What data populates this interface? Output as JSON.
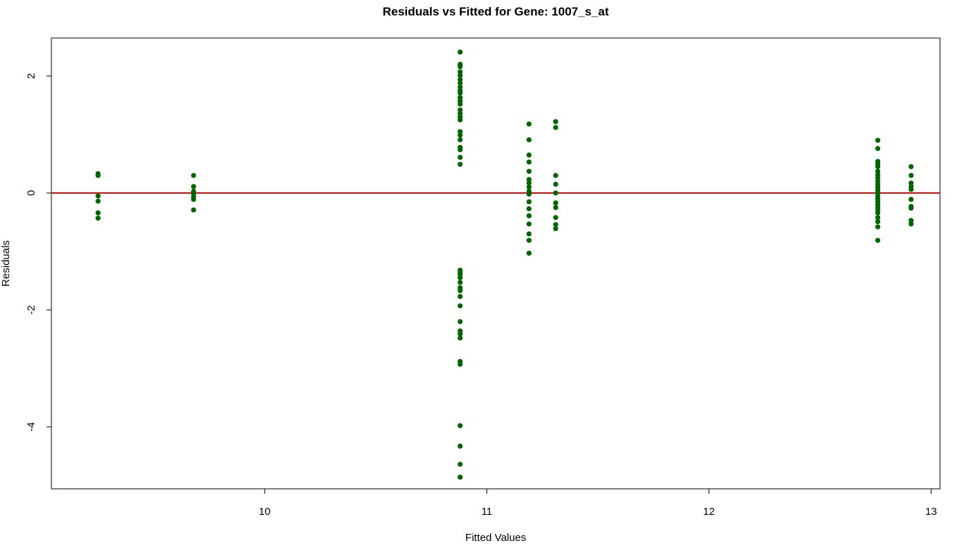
{
  "chart_data": {
    "type": "scatter",
    "title": "Residuals vs Fitted for Gene: 1007_s_at",
    "xlabel": "Fitted Values",
    "ylabel": "Residuals",
    "xlim": [
      9.04,
      13.04
    ],
    "ylim": [
      -5.06,
      2.65
    ],
    "x_ticks": [
      10,
      11,
      12,
      13
    ],
    "y_ticks": [
      -4,
      -2,
      0,
      2
    ],
    "grid": false,
    "point_color": "#006400",
    "reference_line": {
      "y": 0,
      "color": "#ff0000"
    },
    "series": [
      {
        "points": [
          [
            9.25,
            0.33
          ],
          [
            9.25,
            0.3
          ],
          [
            9.25,
            -0.05
          ],
          [
            9.25,
            -0.14
          ],
          [
            9.25,
            -0.34
          ],
          [
            9.25,
            -0.43
          ],
          [
            9.68,
            0.3
          ],
          [
            9.68,
            0.11
          ],
          [
            9.68,
            0.03
          ],
          [
            9.68,
            -0.02
          ],
          [
            9.68,
            -0.07
          ],
          [
            9.68,
            -0.11
          ],
          [
            9.68,
            -0.29
          ],
          [
            10.88,
            2.41
          ],
          [
            10.88,
            2.2
          ],
          [
            10.88,
            2.16
          ],
          [
            10.88,
            2.07
          ],
          [
            10.88,
            2.01
          ],
          [
            10.88,
            1.94
          ],
          [
            10.88,
            1.88
          ],
          [
            10.88,
            1.81
          ],
          [
            10.88,
            1.75
          ],
          [
            10.88,
            1.71
          ],
          [
            10.88,
            1.63
          ],
          [
            10.88,
            1.57
          ],
          [
            10.88,
            1.52
          ],
          [
            10.88,
            1.42
          ],
          [
            10.88,
            1.36
          ],
          [
            10.88,
            1.3
          ],
          [
            10.88,
            1.25
          ],
          [
            10.88,
            1.05
          ],
          [
            10.88,
            0.99
          ],
          [
            10.88,
            0.91
          ],
          [
            10.88,
            0.78
          ],
          [
            10.88,
            0.74
          ],
          [
            10.88,
            0.61
          ],
          [
            10.88,
            0.49
          ],
          [
            10.88,
            -1.32
          ],
          [
            10.88,
            -1.36
          ],
          [
            10.88,
            -1.4
          ],
          [
            10.88,
            -1.45
          ],
          [
            10.88,
            -1.53
          ],
          [
            10.88,
            -1.62
          ],
          [
            10.88,
            -1.67
          ],
          [
            10.88,
            -1.77
          ],
          [
            10.88,
            -1.93
          ],
          [
            10.88,
            -2.2
          ],
          [
            10.88,
            -2.36
          ],
          [
            10.88,
            -2.41
          ],
          [
            10.88,
            -2.48
          ],
          [
            10.88,
            -2.88
          ],
          [
            10.88,
            -2.93
          ],
          [
            10.88,
            -3.98
          ],
          [
            10.88,
            -4.33
          ],
          [
            10.88,
            -4.64
          ],
          [
            10.88,
            -4.86
          ],
          [
            11.19,
            1.18
          ],
          [
            11.19,
            0.91
          ],
          [
            11.19,
            0.65
          ],
          [
            11.19,
            0.53
          ],
          [
            11.19,
            0.37
          ],
          [
            11.19,
            0.23
          ],
          [
            11.19,
            0.17
          ],
          [
            11.19,
            0.1
          ],
          [
            11.19,
            0.03
          ],
          [
            11.19,
            -0.02
          ],
          [
            11.19,
            -0.15
          ],
          [
            11.19,
            -0.27
          ],
          [
            11.19,
            -0.39
          ],
          [
            11.19,
            -0.53
          ],
          [
            11.19,
            -0.7
          ],
          [
            11.19,
            -0.81
          ],
          [
            11.19,
            -1.03
          ],
          [
            11.31,
            1.22
          ],
          [
            11.31,
            1.12
          ],
          [
            11.31,
            0.3
          ],
          [
            11.31,
            0.15
          ],
          [
            11.31,
            0.0
          ],
          [
            11.31,
            -0.17
          ],
          [
            11.31,
            -0.25
          ],
          [
            11.31,
            -0.42
          ],
          [
            11.31,
            -0.54
          ],
          [
            11.31,
            -0.61
          ],
          [
            12.76,
            0.9
          ],
          [
            12.76,
            0.76
          ],
          [
            12.76,
            0.54
          ],
          [
            12.76,
            0.5
          ],
          [
            12.76,
            0.45
          ],
          [
            12.76,
            0.37
          ],
          [
            12.76,
            0.31
          ],
          [
            12.76,
            0.26
          ],
          [
            12.76,
            0.2
          ],
          [
            12.76,
            0.15
          ],
          [
            12.76,
            0.1
          ],
          [
            12.76,
            0.05
          ],
          [
            12.76,
            0.0
          ],
          [
            12.76,
            -0.05
          ],
          [
            12.76,
            -0.1
          ],
          [
            12.76,
            -0.15
          ],
          [
            12.76,
            -0.2
          ],
          [
            12.76,
            -0.25
          ],
          [
            12.76,
            -0.29
          ],
          [
            12.76,
            -0.34
          ],
          [
            12.76,
            -0.42
          ],
          [
            12.76,
            -0.49
          ],
          [
            12.76,
            -0.58
          ],
          [
            12.76,
            -0.81
          ],
          [
            12.91,
            0.45
          ],
          [
            12.91,
            0.3
          ],
          [
            12.91,
            0.17
          ],
          [
            12.91,
            0.11
          ],
          [
            12.91,
            0.06
          ],
          [
            12.91,
            -0.11
          ],
          [
            12.91,
            -0.23
          ],
          [
            12.91,
            -0.26
          ],
          [
            12.91,
            -0.47
          ],
          [
            12.91,
            -0.53
          ]
        ]
      }
    ]
  }
}
